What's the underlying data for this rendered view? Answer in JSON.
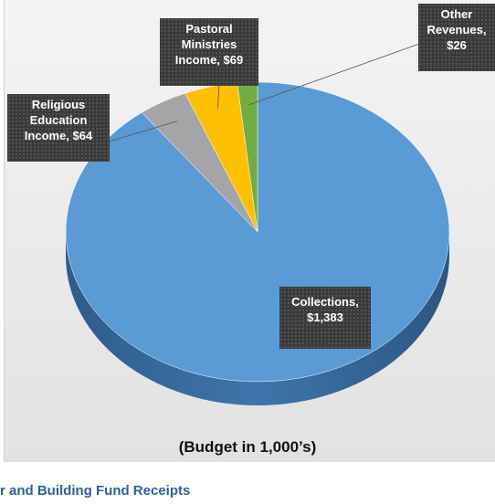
{
  "chart_data": {
    "type": "pie",
    "values": [
      1383,
      64,
      69,
      26
    ],
    "value_labels": [
      "Collections, $1,383",
      "Religious Education Income, $64",
      "Pastoral Ministries Income, $69",
      "Other Revenues, $26"
    ],
    "colors": [
      "#5b9bd5",
      "#a5a5a5",
      "#ffc000",
      "#70ad47"
    ],
    "start_angle": 0,
    "direction": "clockwise",
    "style": "3d",
    "subtitle": "(Budget in 1,000’s)",
    "footer": "r and Building Fund Receipts"
  }
}
